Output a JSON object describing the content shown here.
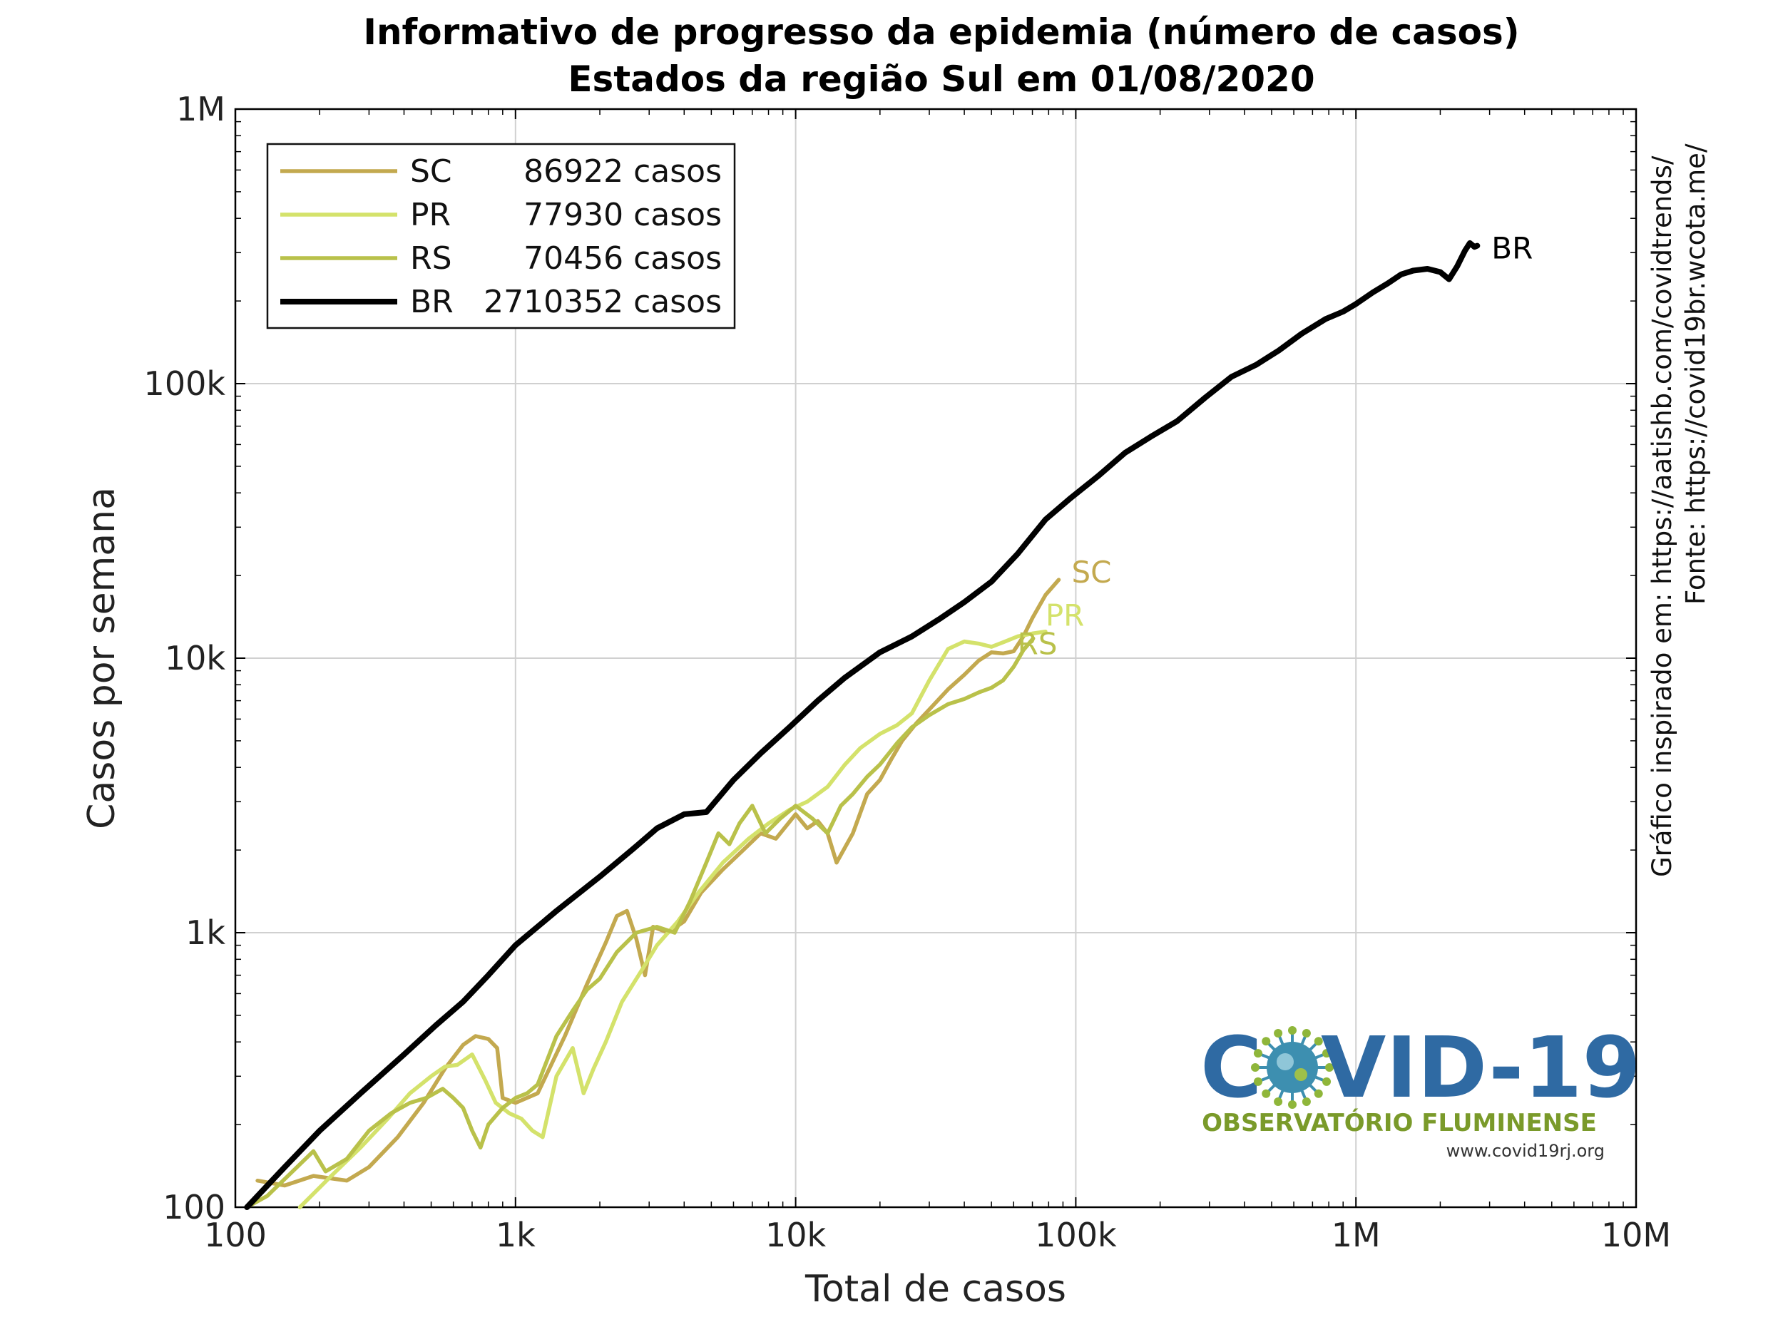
{
  "chart_data": {
    "type": "line",
    "title": "Informativo de progresso da epidemia (número de casos)",
    "subtitle": "Estados da região Sul em 01/08/2020",
    "xlabel": "Total de casos",
    "ylabel": "Casos por semana",
    "x_scale": "log",
    "y_scale": "log",
    "xlim": [
      100,
      10000000
    ],
    "ylim": [
      100,
      1000000
    ],
    "x_ticks": [
      {
        "value": 100,
        "label": "100"
      },
      {
        "value": 1000,
        "label": "1k"
      },
      {
        "value": 10000,
        "label": "10k"
      },
      {
        "value": 100000,
        "label": "100k"
      },
      {
        "value": 1000000,
        "label": "1M"
      },
      {
        "value": 10000000,
        "label": "10M"
      }
    ],
    "y_ticks": [
      {
        "value": 100,
        "label": "100"
      },
      {
        "value": 1000,
        "label": "1k"
      },
      {
        "value": 10000,
        "label": "10k"
      },
      {
        "value": 100000,
        "label": "100k"
      },
      {
        "value": 1000000,
        "label": "1M"
      }
    ],
    "grid": true,
    "legend_position": "top-left",
    "series": [
      {
        "name": "SC",
        "legend_count": "86922 casos",
        "end_label": "SC",
        "color": "#c3a94f",
        "points": [
          [
            120,
            125
          ],
          [
            150,
            120
          ],
          [
            190,
            130
          ],
          [
            250,
            125
          ],
          [
            300,
            140
          ],
          [
            380,
            180
          ],
          [
            470,
            240
          ],
          [
            560,
            320
          ],
          [
            650,
            390
          ],
          [
            720,
            420
          ],
          [
            800,
            410
          ],
          [
            860,
            380
          ],
          [
            900,
            250
          ],
          [
            1000,
            240
          ],
          [
            1200,
            260
          ],
          [
            1500,
            420
          ],
          [
            1800,
            650
          ],
          [
            2100,
            920
          ],
          [
            2300,
            1150
          ],
          [
            2500,
            1200
          ],
          [
            2700,
            950
          ],
          [
            2900,
            700
          ],
          [
            3100,
            1050
          ],
          [
            3500,
            1000
          ],
          [
            4000,
            1100
          ],
          [
            4600,
            1400
          ],
          [
            5500,
            1700
          ],
          [
            6500,
            2000
          ],
          [
            7500,
            2300
          ],
          [
            8500,
            2200
          ],
          [
            10000,
            2700
          ],
          [
            11000,
            2400
          ],
          [
            12000,
            2550
          ],
          [
            13000,
            2300
          ],
          [
            14000,
            1800
          ],
          [
            16000,
            2300
          ],
          [
            18000,
            3200
          ],
          [
            20000,
            3600
          ],
          [
            22000,
            4300
          ],
          [
            24000,
            5000
          ],
          [
            27000,
            5800
          ],
          [
            30000,
            6500
          ],
          [
            35000,
            7700
          ],
          [
            40000,
            8700
          ],
          [
            45000,
            9800
          ],
          [
            50000,
            10500
          ],
          [
            55000,
            10400
          ],
          [
            60000,
            10600
          ],
          [
            65000,
            12000
          ],
          [
            70000,
            14000
          ],
          [
            78000,
            17000
          ],
          [
            86922,
            19300
          ]
        ]
      },
      {
        "name": "PR",
        "legend_count": "77930 casos",
        "end_label": "PR",
        "color": "#d4e26b",
        "points": [
          [
            170,
            100
          ],
          [
            220,
            130
          ],
          [
            280,
            165
          ],
          [
            350,
            210
          ],
          [
            420,
            260
          ],
          [
            500,
            300
          ],
          [
            560,
            325
          ],
          [
            620,
            330
          ],
          [
            700,
            360
          ],
          [
            780,
            290
          ],
          [
            850,
            240
          ],
          [
            950,
            220
          ],
          [
            1050,
            210
          ],
          [
            1150,
            190
          ],
          [
            1250,
            180
          ],
          [
            1400,
            300
          ],
          [
            1600,
            380
          ],
          [
            1750,
            260
          ],
          [
            1900,
            320
          ],
          [
            2100,
            400
          ],
          [
            2400,
            560
          ],
          [
            2800,
            720
          ],
          [
            3200,
            900
          ],
          [
            3800,
            1100
          ],
          [
            4500,
            1400
          ],
          [
            5500,
            1800
          ],
          [
            6800,
            2200
          ],
          [
            8000,
            2500
          ],
          [
            9500,
            2800
          ],
          [
            11000,
            3000
          ],
          [
            13000,
            3400
          ],
          [
            15000,
            4100
          ],
          [
            17000,
            4700
          ],
          [
            20000,
            5300
          ],
          [
            23000,
            5700
          ],
          [
            26000,
            6300
          ],
          [
            30000,
            8300
          ],
          [
            35000,
            10800
          ],
          [
            40000,
            11500
          ],
          [
            45000,
            11300
          ],
          [
            50000,
            11000
          ],
          [
            56000,
            11500
          ],
          [
            62000,
            12000
          ],
          [
            70000,
            12300
          ],
          [
            77930,
            12500
          ]
        ]
      },
      {
        "name": "RS",
        "legend_count": "70456 casos",
        "end_label": "RS",
        "color": "#b9c14a",
        "points": [
          [
            110,
            100
          ],
          [
            130,
            110
          ],
          [
            160,
            135
          ],
          [
            190,
            160
          ],
          [
            210,
            135
          ],
          [
            250,
            150
          ],
          [
            300,
            190
          ],
          [
            360,
            220
          ],
          [
            420,
            240
          ],
          [
            480,
            250
          ],
          [
            550,
            270
          ],
          [
            600,
            250
          ],
          [
            650,
            230
          ],
          [
            700,
            190
          ],
          [
            750,
            165
          ],
          [
            800,
            200
          ],
          [
            900,
            230
          ],
          [
            1000,
            250
          ],
          [
            1100,
            260
          ],
          [
            1200,
            280
          ],
          [
            1400,
            420
          ],
          [
            1600,
            520
          ],
          [
            1800,
            620
          ],
          [
            2000,
            680
          ],
          [
            2300,
            850
          ],
          [
            2700,
            1000
          ],
          [
            3200,
            1050
          ],
          [
            3700,
            1000
          ],
          [
            4200,
            1300
          ],
          [
            4800,
            1800
          ],
          [
            5300,
            2300
          ],
          [
            5800,
            2100
          ],
          [
            6300,
            2500
          ],
          [
            7000,
            2900
          ],
          [
            7800,
            2300
          ],
          [
            8800,
            2600
          ],
          [
            10000,
            2900
          ],
          [
            11500,
            2600
          ],
          [
            13000,
            2300
          ],
          [
            14500,
            2900
          ],
          [
            16000,
            3200
          ],
          [
            18000,
            3700
          ],
          [
            20000,
            4100
          ],
          [
            23000,
            4900
          ],
          [
            26000,
            5600
          ],
          [
            30000,
            6200
          ],
          [
            35000,
            6800
          ],
          [
            40000,
            7100
          ],
          [
            45000,
            7500
          ],
          [
            50000,
            7800
          ],
          [
            55000,
            8300
          ],
          [
            60000,
            9300
          ],
          [
            65000,
            10700
          ],
          [
            70456,
            11800
          ]
        ]
      },
      {
        "name": "BR",
        "legend_count": "2710352 casos",
        "end_label": "BR",
        "color": "#000000",
        "points": [
          [
            110,
            100
          ],
          [
            150,
            140
          ],
          [
            200,
            190
          ],
          [
            280,
            260
          ],
          [
            400,
            360
          ],
          [
            520,
            460
          ],
          [
            650,
            560
          ],
          [
            800,
            700
          ],
          [
            1000,
            900
          ],
          [
            1400,
            1200
          ],
          [
            2000,
            1600
          ],
          [
            2600,
            2000
          ],
          [
            3200,
            2400
          ],
          [
            4000,
            2700
          ],
          [
            4800,
            2750
          ],
          [
            6000,
            3600
          ],
          [
            7500,
            4500
          ],
          [
            9500,
            5600
          ],
          [
            12000,
            7000
          ],
          [
            15000,
            8500
          ],
          [
            20000,
            10500
          ],
          [
            26000,
            12000
          ],
          [
            33000,
            14000
          ],
          [
            40000,
            16000
          ],
          [
            50000,
            19000
          ],
          [
            62000,
            24000
          ],
          [
            78000,
            32000
          ],
          [
            95000,
            38000
          ],
          [
            120000,
            46000
          ],
          [
            150000,
            56000
          ],
          [
            185000,
            64000
          ],
          [
            230000,
            73000
          ],
          [
            290000,
            89000
          ],
          [
            360000,
            106000
          ],
          [
            440000,
            117000
          ],
          [
            530000,
            132000
          ],
          [
            640000,
            152000
          ],
          [
            780000,
            172000
          ],
          [
            900000,
            183000
          ],
          [
            1000000,
            195000
          ],
          [
            1150000,
            215000
          ],
          [
            1300000,
            232000
          ],
          [
            1450000,
            250000
          ],
          [
            1600000,
            258000
          ],
          [
            1800000,
            262000
          ],
          [
            2000000,
            255000
          ],
          [
            2150000,
            240000
          ],
          [
            2300000,
            268000
          ],
          [
            2450000,
            305000
          ],
          [
            2550000,
            325000
          ],
          [
            2650000,
            315000
          ],
          [
            2710352,
            318000
          ]
        ]
      }
    ]
  },
  "side_notes": [
    "Gráfico inspirado em: https://aatishb.com/covidtrends/",
    "Fonte: https://covid19br.wcota.me/"
  ],
  "logo": {
    "part1": "C",
    "part2": "VID-19",
    "subtitle": "OBSERVATÓRIO FLUMINENSE",
    "url": "www.covid19rj.org",
    "colors": {
      "main": "#2f6aa3",
      "sub": "#7a9a2a",
      "virus": "#3d8fb0"
    }
  }
}
